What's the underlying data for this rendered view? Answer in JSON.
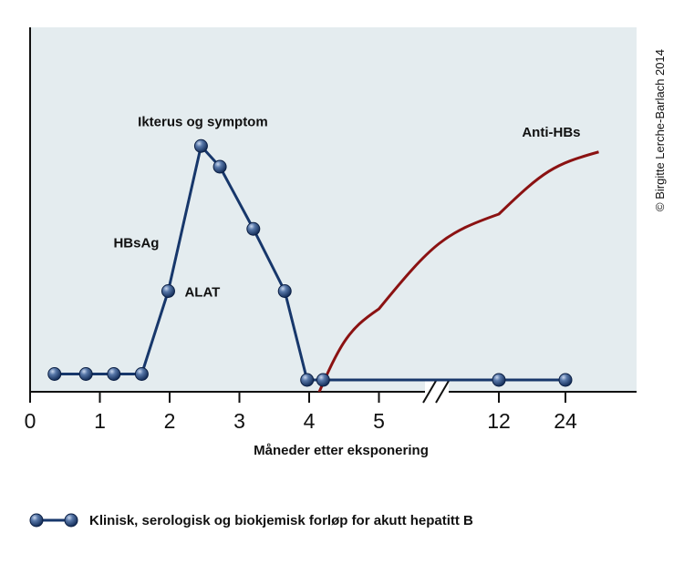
{
  "chart_data": {
    "type": "line",
    "xlabel": "Måneder etter eksponering",
    "x_ticks": [
      "0",
      "1",
      "2",
      "3",
      "4",
      "5",
      "12",
      "24"
    ],
    "axis_break": "between 5 and 12",
    "grid": false,
    "background_color": "#e4ecef",
    "series": [
      {
        "name": "",
        "color": "#17376b",
        "marker": "sphere",
        "points": [
          {
            "x": 0.35,
            "y": 0.06
          },
          {
            "x": 0.8,
            "y": 0.06
          },
          {
            "x": 1.2,
            "y": 0.06
          },
          {
            "x": 1.6,
            "y": 0.06
          },
          {
            "x": 1.98,
            "y": 0.34
          },
          {
            "x": 2.45,
            "y": 0.83
          },
          {
            "x": 2.72,
            "y": 0.76
          },
          {
            "x": 3.2,
            "y": 0.55
          },
          {
            "x": 3.65,
            "y": 0.34
          },
          {
            "x": 3.97,
            "y": 0.04
          },
          {
            "x": 4.2,
            "y": 0.04
          },
          {
            "x": 12,
            "y": 0.04
          },
          {
            "x": 24,
            "y": 0.04
          }
        ]
      },
      {
        "name": "",
        "color": "#8b1212",
        "marker": "none",
        "points": [
          {
            "x": 4.0,
            "y": -0.08
          },
          {
            "x": 5.0,
            "y": 0.28
          },
          {
            "x": 12,
            "y": 0.6
          },
          {
            "x": 30,
            "y": 0.81
          }
        ]
      }
    ],
    "annotations": [
      {
        "text": "Ikterus og symptom",
        "series": 0
      },
      {
        "text": "HBsAg",
        "series": 0
      },
      {
        "text": "ALAT",
        "series": 0
      },
      {
        "text": "Anti-HBs",
        "series": 1
      }
    ]
  },
  "copyright": "© Birgitte Lerche-Barlach 2014",
  "legend": {
    "text": "Klinisk, serologisk og biokjemisk forløp for akutt hepatitt B"
  }
}
